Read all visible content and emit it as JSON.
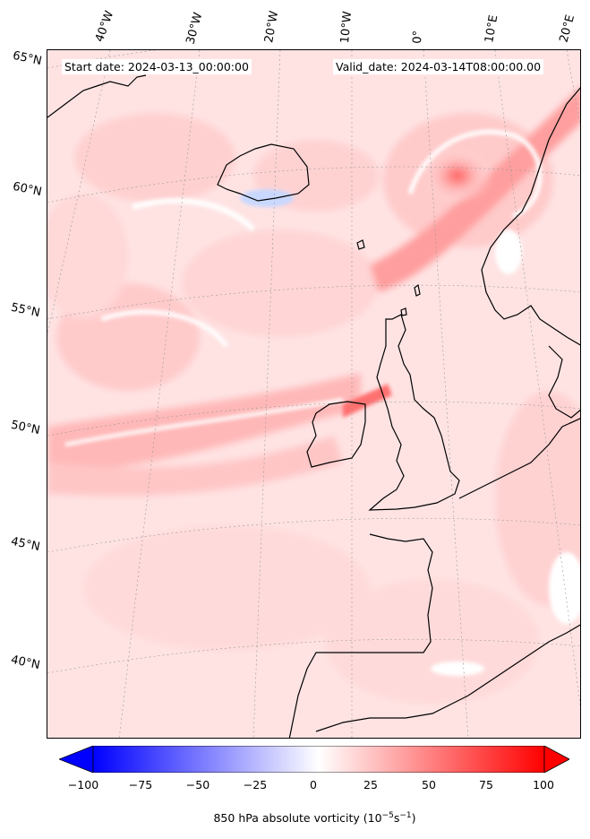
{
  "map": {
    "start_date": "Start date: 2024-03-13_00:00:00",
    "valid_date": "Valid_date: 2024-03-14T08:00:00.00",
    "lon_labels": [
      "40°W",
      "30°W",
      "20°W",
      "10°W",
      "0°",
      "10°E",
      "20°E"
    ],
    "lat_labels": [
      "65°N",
      "60°N",
      "55°N",
      "50°N",
      "45°N",
      "40°N"
    ]
  },
  "colorbar": {
    "ticks": [
      "−100",
      "−75",
      "−50",
      "−25",
      "0",
      "25",
      "50",
      "75",
      "100"
    ],
    "label": "850 hPa absolute vorticity (10",
    "label_sup1": "−5",
    "label_mid": "s",
    "label_sup2": "−1",
    "label_end": ")",
    "min": -100,
    "max": 100,
    "low_color": "#0000ff",
    "mid_color": "#ffffff",
    "high_color": "#ff0000"
  }
}
